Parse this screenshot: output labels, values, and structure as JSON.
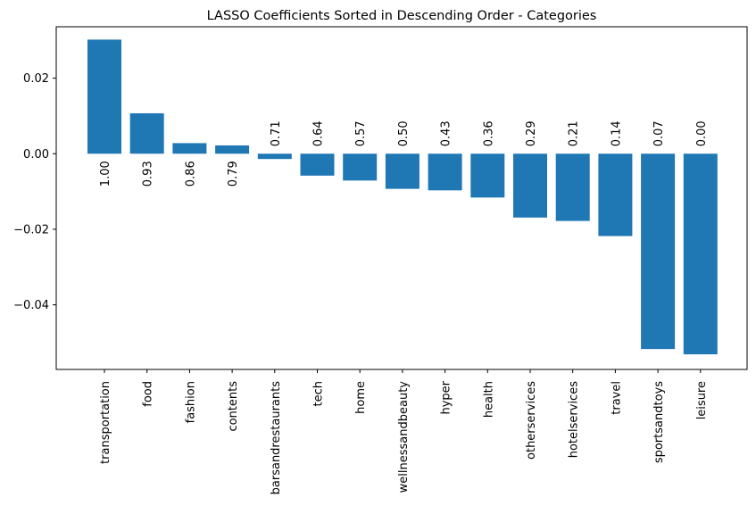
{
  "chart_data": {
    "type": "bar",
    "title": "LASSO Coefficients Sorted in Descending Order - Categories",
    "xlabel": "",
    "ylabel": "",
    "categories": [
      "transportation",
      "food",
      "fashion",
      "contents",
      "barsandrestaurants",
      "tech",
      "home",
      "wellnessandbeauty",
      "hyper",
      "health",
      "otherservices",
      "hotelservices",
      "travel",
      "sportsandtoys",
      "leisure"
    ],
    "values": [
      0.0302,
      0.0107,
      0.0028,
      0.0022,
      -0.0014,
      -0.0058,
      -0.0071,
      -0.0093,
      -0.0097,
      -0.0116,
      -0.0169,
      -0.0178,
      -0.0218,
      -0.0517,
      -0.0531
    ],
    "data_labels": [
      "1.00",
      "0.93",
      "0.86",
      "0.79",
      "0.71",
      "0.64",
      "0.57",
      "0.50",
      "0.43",
      "0.36",
      "0.29",
      "0.21",
      "0.14",
      "0.07",
      "0.00"
    ],
    "ylim": [
      -0.0571,
      0.0336
    ],
    "yticks": [
      0.02,
      0.0,
      -0.02,
      -0.04
    ],
    "ytick_labels": [
      "0.02",
      "0.00",
      "−0.02",
      "−0.04"
    ],
    "bar_color": "#1f77b4",
    "grid": false,
    "legend": "none"
  }
}
